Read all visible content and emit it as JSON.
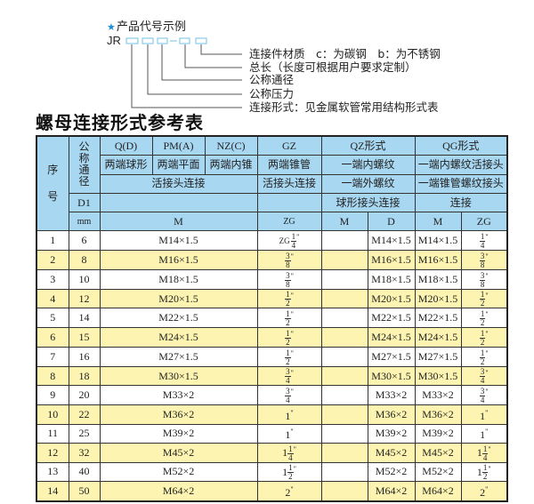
{
  "legend": {
    "star_icon": "star-icon",
    "title": "产品代号示例",
    "code_prefix": "JR",
    "labels": [
      "连接件材质　c：为碳钢　b：为不锈钢",
      "总长（长度可根据用户要求定制）",
      "公称通径",
      "公称压力",
      "连接形式：见金属软管常用结构形式表"
    ],
    "accent_color": "#1a8fd8"
  },
  "table_title": "螺母连接形式参考表",
  "header": {
    "seq": "序\n\n号",
    "nominal": "公\n称\n通\n径",
    "qd": "Q(D)",
    "pm": "PM(A)",
    "nz": "NZ(C)",
    "gz": "GZ",
    "qz": "QZ形式",
    "qg": "QG形式",
    "r2": [
      "两端球形",
      "两端平面",
      "两端内锥",
      "两端锥管",
      "一端内螺纹",
      "一端内螺纹活接头"
    ],
    "r3": [
      "活接头连接",
      "活接头连接",
      "一端外螺纹",
      "一端锥管螺纹接头"
    ],
    "d1": "D1",
    "qz_r4": "球形接头连接",
    "qg_r4": "连接",
    "mm": "mm",
    "r5": [
      "M",
      "ZG",
      "M",
      "D",
      "M",
      "ZG"
    ]
  },
  "colors": {
    "header_bg": "#a8d7f1",
    "row_alt_bg": "#fcf4b0"
  },
  "rows": [
    {
      "no": "1",
      "d1": "6",
      "m": "M14×1.5",
      "zg": {
        "pre": "ZG",
        "whole": "",
        "num": "1",
        "den": "4"
      },
      "qz_m": "",
      "qz_d": "M14×1.5",
      "qg_m": "M14×1.5",
      "qg_zg": {
        "whole": "",
        "num": "1",
        "den": "4"
      }
    },
    {
      "no": "2",
      "d1": "8",
      "m": "M16×1.5",
      "zg": {
        "whole": "",
        "num": "3",
        "den": "8"
      },
      "qz_m": "",
      "qz_d": "M16×1.5",
      "qg_m": "M16×1.5",
      "qg_zg": {
        "whole": "",
        "num": "3",
        "den": "8"
      }
    },
    {
      "no": "3",
      "d1": "10",
      "m": "M18×1.5",
      "zg": {
        "whole": "",
        "num": "3",
        "den": "8"
      },
      "qz_m": "",
      "qz_d": "M18×1.5",
      "qg_m": "M18×1.5",
      "qg_zg": {
        "whole": "",
        "num": "3",
        "den": "8"
      }
    },
    {
      "no": "4",
      "d1": "12",
      "m": "M20×1.5",
      "zg": {
        "whole": "",
        "num": "1",
        "den": "2"
      },
      "qz_m": "",
      "qz_d": "M20×1.5",
      "qg_m": "M20×1.5",
      "qg_zg": {
        "whole": "",
        "num": "1",
        "den": "2"
      }
    },
    {
      "no": "5",
      "d1": "14",
      "m": "M22×1.5",
      "zg": {
        "whole": "",
        "num": "1",
        "den": "2"
      },
      "qz_m": "",
      "qz_d": "M22×1.5",
      "qg_m": "M22×1.5",
      "qg_zg": {
        "whole": "",
        "num": "1",
        "den": "2"
      }
    },
    {
      "no": "6",
      "d1": "15",
      "m": "M24×1.5",
      "zg": {
        "whole": "",
        "num": "1",
        "den": "2"
      },
      "qz_m": "",
      "qz_d": "M24×1.5",
      "qg_m": "M24×1.5",
      "qg_zg": {
        "whole": "",
        "num": "1",
        "den": "2"
      }
    },
    {
      "no": "7",
      "d1": "16",
      "m": "M27×1.5",
      "zg": {
        "whole": "",
        "num": "1",
        "den": "2"
      },
      "qz_m": "",
      "qz_d": "M27×1.5",
      "qg_m": "M27×1.5",
      "qg_zg": {
        "whole": "",
        "num": "1",
        "den": "2"
      }
    },
    {
      "no": "8",
      "d1": "18",
      "m": "M30×1.5",
      "zg": {
        "whole": "",
        "num": "3",
        "den": "4"
      },
      "qz_m": "",
      "qz_d": "M30×1.5",
      "qg_m": "M30×1.5",
      "qg_zg": {
        "whole": "",
        "num": "3",
        "den": "4"
      }
    },
    {
      "no": "9",
      "d1": "20",
      "m": "M33×2",
      "zg": {
        "whole": "",
        "num": "3",
        "den": "4"
      },
      "qz_m": "",
      "qz_d": "M33×2",
      "qg_m": "M33×2",
      "qg_zg": {
        "whole": "",
        "num": "3",
        "den": "4"
      }
    },
    {
      "no": "10",
      "d1": "22",
      "m": "M36×2",
      "zg": {
        "whole": "1"
      },
      "qz_m": "",
      "qz_d": "M36×2",
      "qg_m": "M36×2",
      "qg_zg": {
        "whole": "1"
      }
    },
    {
      "no": "11",
      "d1": "25",
      "m": "M39×2",
      "zg": {
        "whole": "1"
      },
      "qz_m": "",
      "qz_d": "M39×2",
      "qg_m": "M39×2",
      "qg_zg": {
        "whole": "1"
      }
    },
    {
      "no": "12",
      "d1": "32",
      "m": "M45×2",
      "zg": {
        "whole": "1",
        "num": "1",
        "den": "4"
      },
      "qz_m": "",
      "qz_d": "M45×2",
      "qg_m": "M45×2",
      "qg_zg": {
        "whole": "1",
        "num": "1",
        "den": "4"
      }
    },
    {
      "no": "13",
      "d1": "40",
      "m": "M52×2",
      "zg": {
        "whole": "1",
        "num": "1",
        "den": "2"
      },
      "qz_m": "",
      "qz_d": "M52×2",
      "qg_m": "M52×2",
      "qg_zg": {
        "whole": "1",
        "num": "1",
        "den": "2"
      }
    },
    {
      "no": "14",
      "d1": "50",
      "m": "M64×2",
      "zg": {
        "whole": "2"
      },
      "qz_m": "",
      "qz_d": "M64×2",
      "qg_m": "M64×2",
      "qg_zg": {
        "whole": "2"
      }
    }
  ]
}
